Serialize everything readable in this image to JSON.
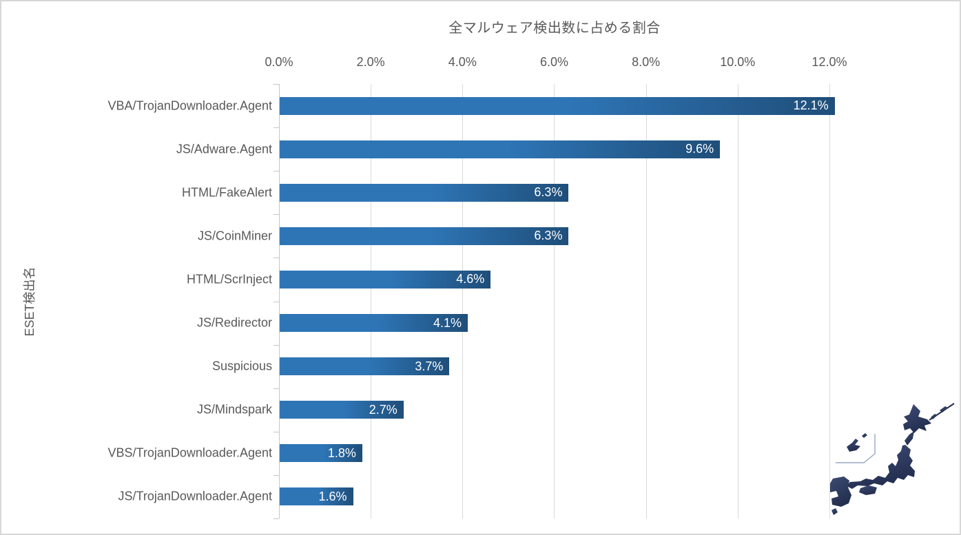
{
  "chart_data": {
    "type": "bar",
    "orientation": "horizontal",
    "title": "全マルウェア検出数に占める割合",
    "xlabel": "全マルウェア検出数に占める割合",
    "ylabel": "ESET検出名",
    "xlim": [
      0,
      12.2
    ],
    "x_tick_values": [
      0,
      2,
      4,
      6,
      8,
      10,
      12
    ],
    "x_tick_labels": [
      "0.0%",
      "2.0%",
      "4.0%",
      "6.0%",
      "8.0%",
      "10.0%",
      "12.0%"
    ],
    "grid": true,
    "legend": "none",
    "categories": [
      "VBA/TrojanDownloader.Agent",
      "JS/Adware.Agent",
      "HTML/FakeAlert",
      "JS/CoinMiner",
      "HTML/ScrInject",
      "JS/Redirector",
      "Suspicious",
      "JS/Mindspark",
      "VBS/TrojanDownloader.Agent",
      "JS/TrojanDownloader.Agent"
    ],
    "values": [
      12.1,
      9.6,
      6.3,
      6.3,
      4.6,
      4.1,
      3.7,
      2.7,
      1.8,
      1.6
    ],
    "value_labels": [
      "12.1%",
      "9.6%",
      "6.3%",
      "6.3%",
      "4.6%",
      "4.1%",
      "3.7%",
      "2.7%",
      "1.8%",
      "1.6%"
    ],
    "colors": {
      "bar_gradient_start": "#2E75B6",
      "bar_gradient_end": "#1F4E79",
      "gridline": "#D9D9D9",
      "axis_line": "#C6C6C6",
      "text": "#595959",
      "data_label": "#FFFFFF",
      "border": "#D7D7D7",
      "map_fill_light": "#3E4C74",
      "map_fill_dark": "#232E4F",
      "map_bracket": "#9AA7C2"
    }
  },
  "decor": {
    "japan_map": "stylized Japan archipelago silhouette with Okinawa inset bracket"
  }
}
